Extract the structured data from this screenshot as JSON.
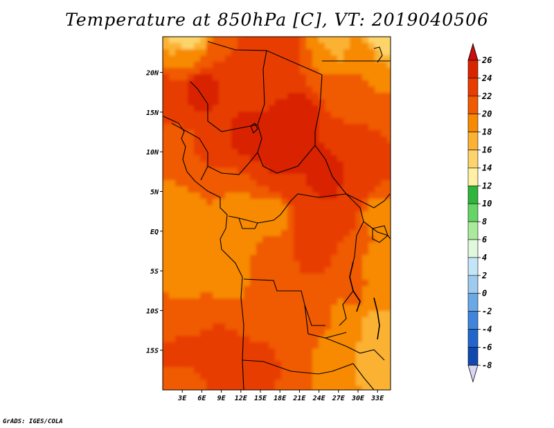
{
  "title": "Temperature at 850hPa [C], VT: 2019040506",
  "credit": "GrADS: IGES/COLA",
  "chart_data": {
    "type": "heatmap",
    "variable": "Temperature at 850hPa",
    "units": "C",
    "valid_time": "2019040506",
    "xlim": [
      0,
      35
    ],
    "ylim": [
      -20,
      24.5
    ],
    "x_ticks": [
      {
        "value": 3,
        "label": "3E"
      },
      {
        "value": 6,
        "label": "6E"
      },
      {
        "value": 9,
        "label": "9E"
      },
      {
        "value": 12,
        "label": "12E"
      },
      {
        "value": 15,
        "label": "15E"
      },
      {
        "value": 18,
        "label": "18E"
      },
      {
        "value": 21,
        "label": "21E"
      },
      {
        "value": 24,
        "label": "24E"
      },
      {
        "value": 27,
        "label": "27E"
      },
      {
        "value": 30,
        "label": "30E"
      },
      {
        "value": 33,
        "label": "33E"
      }
    ],
    "y_ticks": [
      {
        "value": 20,
        "label": "20N"
      },
      {
        "value": 15,
        "label": "15N"
      },
      {
        "value": 10,
        "label": "10N"
      },
      {
        "value": 5,
        "label": "5N"
      },
      {
        "value": 0,
        "label": "EQ"
      },
      {
        "value": -5,
        "label": "5S"
      },
      {
        "value": -10,
        "label": "10S"
      },
      {
        "value": -15,
        "label": "15S"
      }
    ],
    "colorbar": {
      "levels": [
        "26",
        "24",
        "22",
        "20",
        "18",
        "16",
        "14",
        "12",
        "10",
        "8",
        "6",
        "4",
        "2",
        "0",
        "-2",
        "-4",
        "-6",
        "-8"
      ],
      "colors": [
        "#d92400",
        "#e83c00",
        "#f05a00",
        "#f78a00",
        "#fbb233",
        "#fdd46b",
        "#fff0a3",
        "#2fb43c",
        "#67d466",
        "#a9ea9d",
        "#e0f8dc",
        "#c4e4f8",
        "#9dcbf0",
        "#6aa8e6",
        "#3f85db",
        "#2266cc",
        "#1148b0",
        "#0a2a8a"
      ],
      "over_color": "#c80e0e",
      "under_color": "#d8d6f3"
    },
    "regions": [
      {
        "lon": 4,
        "lat": 24,
        "value": 14
      },
      {
        "lon": 26,
        "lat": 24,
        "value": 16
      },
      {
        "lon": 33,
        "lat": 24,
        "value": 15
      },
      {
        "lon": 4,
        "lat": 22,
        "value": 20
      },
      {
        "lon": 9,
        "lat": 22,
        "value": 22
      },
      {
        "lon": 15,
        "lat": 22,
        "value": 22
      },
      {
        "lon": 19,
        "lat": 22,
        "value": 24
      },
      {
        "lon": 24,
        "lat": 22,
        "value": 20
      },
      {
        "lon": 31,
        "lat": 22,
        "value": 20
      },
      {
        "lon": 2,
        "lat": 16,
        "value": 24
      },
      {
        "lon": 6,
        "lat": 18,
        "value": 25
      },
      {
        "lon": 12,
        "lat": 18,
        "value": 23
      },
      {
        "lon": 17,
        "lat": 18,
        "value": 24
      },
      {
        "lon": 21,
        "lat": 14,
        "value": 25
      },
      {
        "lon": 28,
        "lat": 17,
        "value": 21
      },
      {
        "lon": 33,
        "lat": 17,
        "value": 20
      },
      {
        "lon": 2,
        "lat": 11,
        "value": 21
      },
      {
        "lon": 7,
        "lat": 11,
        "value": 23
      },
      {
        "lon": 13,
        "lat": 12,
        "value": 25
      },
      {
        "lon": 18,
        "lat": 10,
        "value": 25
      },
      {
        "lon": 24,
        "lat": 10,
        "value": 24
      },
      {
        "lon": 29,
        "lat": 10,
        "value": 24
      },
      {
        "lon": 33,
        "lat": 10,
        "value": 22
      },
      {
        "lon": 4,
        "lat": 7,
        "value": 21
      },
      {
        "lon": 10,
        "lat": 7,
        "value": 22
      },
      {
        "lon": 19,
        "lat": 7,
        "value": 24
      },
      {
        "lon": 25,
        "lat": 6,
        "value": 25
      },
      {
        "lon": 30,
        "lat": 6,
        "value": 24
      },
      {
        "lon": 3,
        "lat": 4,
        "value": 19
      },
      {
        "lon": 11,
        "lat": 3,
        "value": 19
      },
      {
        "lon": 17,
        "lat": 2,
        "value": 19
      },
      {
        "lon": 22,
        "lat": 3,
        "value": 23
      },
      {
        "lon": 28,
        "lat": 3,
        "value": 23
      },
      {
        "lon": 33,
        "lat": 2,
        "value": 19
      },
      {
        "lon": 2,
        "lat": -1,
        "value": 19
      },
      {
        "lon": 12,
        "lat": -1,
        "value": 19
      },
      {
        "lon": 17,
        "lat": -3,
        "value": 21
      },
      {
        "lon": 23,
        "lat": -2,
        "value": 23
      },
      {
        "lon": 29,
        "lat": -2,
        "value": 22
      },
      {
        "lon": 33,
        "lat": -4,
        "value": 19
      },
      {
        "lon": 3,
        "lat": -6,
        "value": 19
      },
      {
        "lon": 10,
        "lat": -6,
        "value": 19
      },
      {
        "lon": 17,
        "lat": -7,
        "value": 21
      },
      {
        "lon": 23,
        "lat": -6,
        "value": 22
      },
      {
        "lon": 29,
        "lat": -7,
        "value": 21
      },
      {
        "lon": 33,
        "lat": -8,
        "value": 19
      },
      {
        "lon": 2,
        "lat": -11,
        "value": 21
      },
      {
        "lon": 8,
        "lat": -12,
        "value": 22
      },
      {
        "lon": 15,
        "lat": -11,
        "value": 21
      },
      {
        "lon": 20,
        "lat": -11,
        "value": 20
      },
      {
        "lon": 24,
        "lat": -10,
        "value": 21
      },
      {
        "lon": 28,
        "lat": -11,
        "value": 19
      },
      {
        "lon": 33,
        "lat": -12,
        "value": 17
      },
      {
        "lon": 3,
        "lat": -16,
        "value": 23
      },
      {
        "lon": 9,
        "lat": -16,
        "value": 23
      },
      {
        "lon": 14,
        "lat": -17,
        "value": 24
      },
      {
        "lon": 18,
        "lat": -15,
        "value": 22
      },
      {
        "lon": 23,
        "lat": -16,
        "value": 20
      },
      {
        "lon": 28,
        "lat": -16,
        "value": 18
      },
      {
        "lon": 33,
        "lat": -16,
        "value": 17
      },
      {
        "lon": 3,
        "lat": -19,
        "value": 21
      },
      {
        "lon": 13,
        "lat": -19,
        "value": 23
      },
      {
        "lon": 22,
        "lat": -19,
        "value": 20
      },
      {
        "lon": 30,
        "lat": -19,
        "value": 18
      }
    ]
  }
}
